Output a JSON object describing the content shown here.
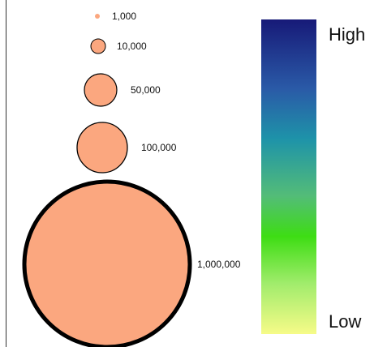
{
  "size_legend": {
    "fill_color": "#FBA77F",
    "stroke_color": "#000000",
    "items": [
      {
        "label": "1,000"
      },
      {
        "label": "10,000"
      },
      {
        "label": "50,000"
      },
      {
        "label": "100,000"
      },
      {
        "label": "1,000,000"
      }
    ]
  },
  "color_legend": {
    "high_label": "High",
    "low_label": "Low",
    "gradient_stops": [
      "#1a1a7a",
      "#2b56a8",
      "#1f91a8",
      "#4cc07a",
      "#3fdc16",
      "#8ee96a",
      "#f4fb86"
    ]
  }
}
